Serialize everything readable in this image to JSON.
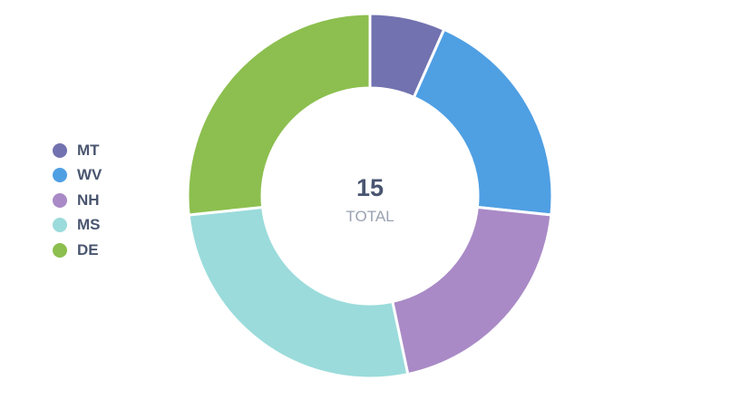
{
  "chart_data": {
    "type": "pie",
    "categories": [
      "MT",
      "WV",
      "NH",
      "MS",
      "DE"
    ],
    "values": [
      1,
      3,
      3,
      4,
      4
    ],
    "colors": [
      "#7272b0",
      "#4f9fe3",
      "#a98ac6",
      "#9bdbdb",
      "#8cbf4f"
    ],
    "total": {
      "value": "15",
      "label": "TOTAL"
    },
    "legend_position": "left"
  }
}
